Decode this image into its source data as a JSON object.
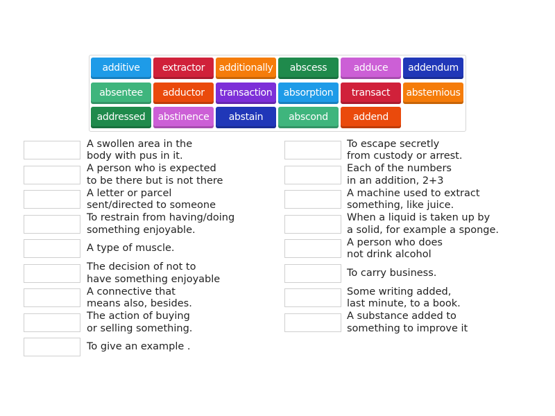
{
  "word_bank": [
    {
      "label": "additive",
      "color": "#1e9be8"
    },
    {
      "label": "extractor",
      "color": "#d0213a"
    },
    {
      "label": "additionally",
      "color": "#f57c0a"
    },
    {
      "label": "abscess",
      "color": "#1f8a4c"
    },
    {
      "label": "adduce",
      "color": "#cc5fd6"
    },
    {
      "label": "addendum",
      "color": "#2037b8"
    },
    {
      "label": "absentee",
      "color": "#3fb57d"
    },
    {
      "label": "adductor",
      "color": "#ea4a0c"
    },
    {
      "label": "transaction",
      "color": "#7d2fd8"
    },
    {
      "label": "absorption",
      "color": "#1e9be8"
    },
    {
      "label": "transact",
      "color": "#d0213a"
    },
    {
      "label": "abstemious",
      "color": "#f57c0a"
    },
    {
      "label": "addressed",
      "color": "#1f8a4c"
    },
    {
      "label": "abstinence",
      "color": "#cc5fd6"
    },
    {
      "label": "abstain",
      "color": "#2037b8"
    },
    {
      "label": "abscond",
      "color": "#3fb57d"
    },
    {
      "label": "addend",
      "color": "#ea4a0c"
    }
  ],
  "left_clues": [
    "A swollen area in the\nbody with pus in it.",
    "A person who is expected\nto be there but is not there",
    "A letter or parcel\nsent/directed to someone",
    "To restrain from having/doing\nsomething enjoyable.",
    "A type of muscle.",
    "The decision of not to\nhave something enjoyable",
    "A connective that\nmeans also, besides.",
    "The action of buying\nor selling something.",
    "To give an example ."
  ],
  "right_clues": [
    "To escape secretly\nfrom custody or arrest.",
    "Each of the numbers\nin an addition, 2+3",
    "A machine used to extract\nsomething, like juice.",
    "When a liquid is taken up by\na solid, for example a sponge.",
    "A person who does\nnot drink alcohol",
    "To carry business.",
    "Some writing added,\nlast minute, to a book.",
    "A substance added to\nsomething to improve it"
  ]
}
